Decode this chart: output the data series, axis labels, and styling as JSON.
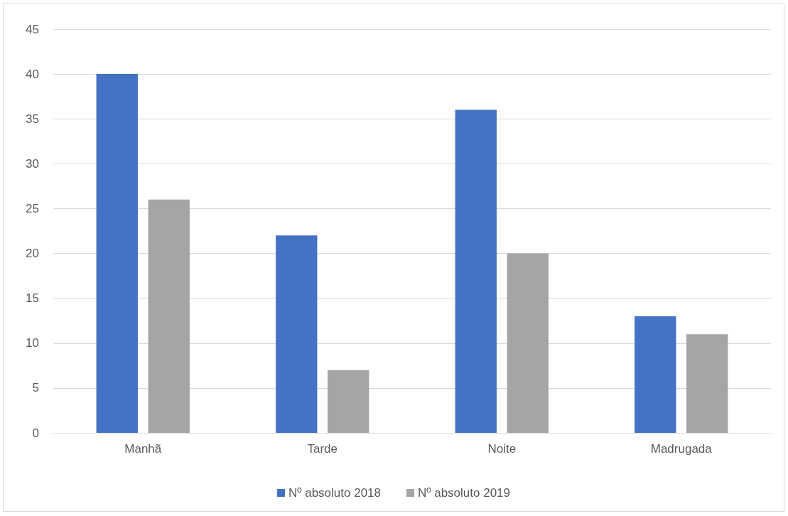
{
  "chart_data": {
    "type": "bar",
    "categories": [
      "Manhã",
      "Tarde",
      "Noite",
      "Madrugada"
    ],
    "series": [
      {
        "name": "Nº absoluto 2018",
        "color": "#4472c4",
        "values": [
          40,
          22,
          36,
          13
        ]
      },
      {
        "name": "Nº absoluto 2019",
        "color": "#a5a5a5",
        "values": [
          26,
          7,
          20,
          11
        ]
      }
    ],
    "ylim": [
      0,
      45
    ],
    "yticks": [
      0,
      5,
      10,
      15,
      20,
      25,
      30,
      35,
      40,
      45
    ],
    "grid": "y",
    "legend": "bottom"
  }
}
